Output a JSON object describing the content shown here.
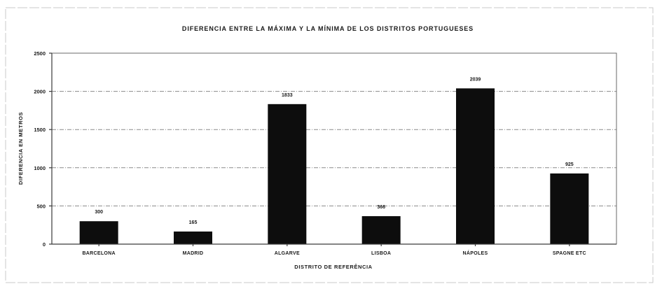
{
  "chart_data": {
    "type": "bar",
    "title": "DIFERENCIA ENTRE LA MÁXIMA Y LA MÍNIMA DE LOS DISTRITOS PORTUGUESES",
    "xlabel": "DISTRITO DE REFERÊNCIA",
    "ylabel": "DIFERENCIA EN METROS",
    "categories": [
      "BARCELONA",
      "MADRID",
      "ALGARVE",
      "LISBOA",
      "NÁPOLES",
      "SPAGNE ETC"
    ],
    "values": [
      300,
      165,
      1833,
      366,
      2039,
      925
    ],
    "ylim": [
      0,
      2500
    ],
    "yticks": [
      0,
      500,
      1000,
      1500,
      2000,
      2500
    ],
    "grid": true,
    "legend": "none",
    "bar_color": "#0d0d0d"
  }
}
